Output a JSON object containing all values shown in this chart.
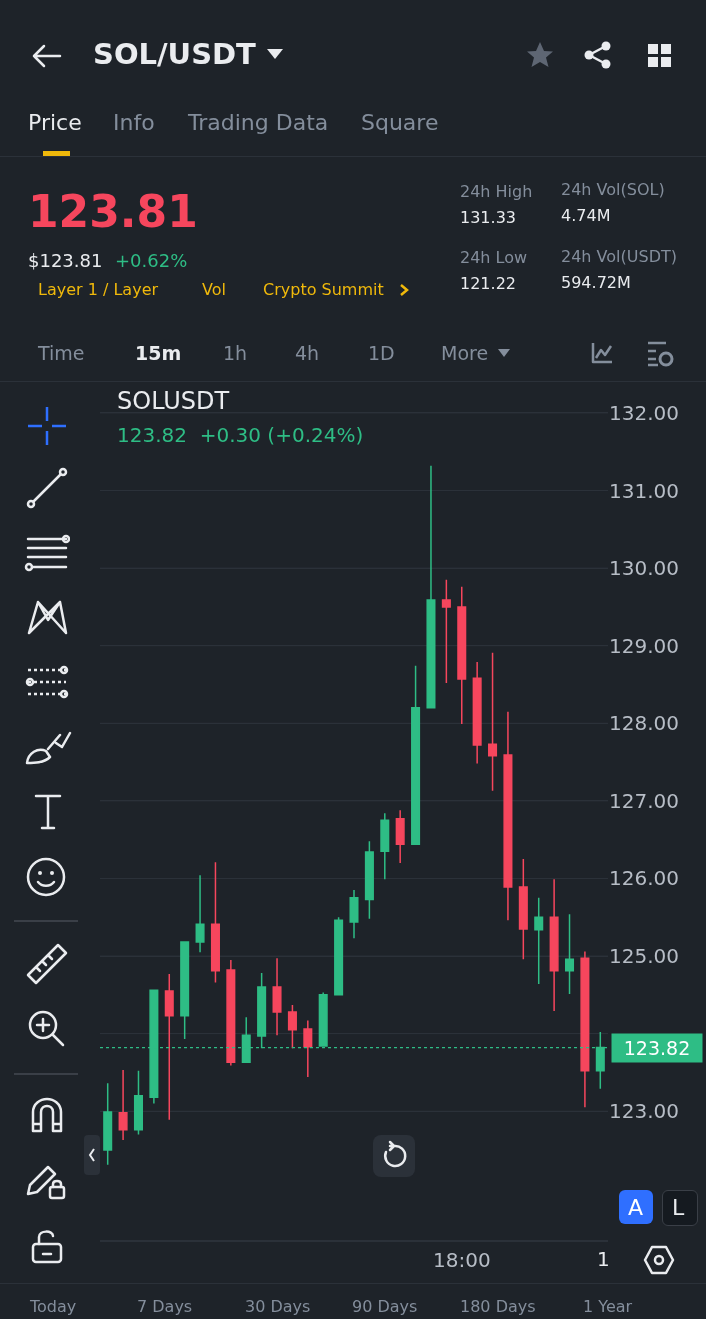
{
  "chart_data": {
    "type": "candlestick",
    "title": "SOLUSDT",
    "subtitle": "123.82  +0.30 (+0.24%)",
    "categories": [
      null,
      null,
      null,
      null,
      null,
      null,
      null,
      null,
      null,
      null,
      null,
      null,
      null,
      null,
      null,
      null,
      null,
      null,
      null,
      null,
      null,
      null,
      null,
      null,
      null,
      null,
      null,
      null,
      null,
      null,
      null,
      null,
      null
    ],
    "ohlc": [
      [
        122.5,
        123.36,
        122.31,
        122.99
      ],
      [
        122.98,
        123.53,
        122.63,
        122.76
      ],
      [
        122.76,
        123.52,
        122.7,
        123.2
      ],
      [
        123.18,
        124.56,
        123.1,
        124.56
      ],
      [
        124.55,
        124.77,
        122.89,
        124.23
      ],
      [
        124.23,
        125.18,
        123.93,
        125.18
      ],
      [
        125.18,
        126.04,
        125.05,
        125.41
      ],
      [
        125.41,
        126.21,
        124.66,
        124.81
      ],
      [
        124.82,
        124.95,
        123.59,
        123.63
      ],
      [
        123.63,
        124.21,
        123.63,
        123.98
      ],
      [
        123.97,
        124.78,
        123.81,
        124.6
      ],
      [
        124.6,
        124.97,
        123.98,
        124.28
      ],
      [
        124.28,
        124.37,
        123.81,
        124.05
      ],
      [
        124.06,
        124.17,
        123.44,
        123.83
      ],
      [
        123.84,
        124.53,
        123.84,
        124.5
      ],
      [
        124.5,
        125.5,
        124.5,
        125.46
      ],
      [
        125.44,
        125.85,
        125.23,
        125.75
      ],
      [
        125.73,
        126.48,
        125.48,
        126.34
      ],
      [
        126.35,
        126.84,
        125.99,
        126.75
      ],
      [
        126.77,
        126.88,
        126.2,
        126.44
      ],
      [
        126.44,
        128.74,
        126.44,
        128.2
      ],
      [
        128.2,
        131.32,
        128.2,
        129.59
      ],
      [
        129.59,
        129.85,
        128.52,
        129.5
      ],
      [
        129.5,
        129.76,
        127.99,
        128.57
      ],
      [
        128.58,
        128.79,
        127.48,
        127.72
      ],
      [
        127.73,
        128.91,
        127.13,
        127.58
      ],
      [
        127.59,
        128.15,
        125.46,
        125.89
      ],
      [
        125.89,
        126.25,
        124.96,
        125.35
      ],
      [
        125.34,
        125.75,
        124.64,
        125.5
      ],
      [
        125.5,
        125.99,
        124.29,
        124.81
      ],
      [
        124.81,
        125.54,
        124.51,
        124.96
      ],
      [
        124.97,
        125.06,
        123.05,
        123.52
      ],
      [
        123.52,
        124.02,
        123.29,
        123.82
      ]
    ],
    "ylim": [
      121.34,
      132.36
    ],
    "yticks": [
      {
        "value": 123,
        "label": "123.00"
      },
      {
        "value": 124,
        "label": null
      },
      {
        "value": 125,
        "label": "125.00"
      },
      {
        "value": 126,
        "label": "126.00"
      },
      {
        "value": 127,
        "label": "127.00"
      },
      {
        "value": 128,
        "label": "128.00"
      },
      {
        "value": 129,
        "label": "129.00"
      },
      {
        "value": 130,
        "label": "130.00"
      },
      {
        "value": 131,
        "label": "131.00"
      },
      {
        "value": 132,
        "label": "132.00"
      }
    ],
    "grid": "y",
    "ref_lines": [
      {
        "axis": "y",
        "value": 123.82,
        "label": "123.82",
        "color": "#2ebd85",
        "line_style": "dotted"
      }
    ],
    "annotations": [
      "18:00",
      "SOL/USDT",
      "Price",
      "Info",
      "Trading Data",
      "Square",
      "123.81",
      "$123.81",
      "+0.62%",
      "Layer 1 / Layer",
      "Vol",
      "Crypto Summit",
      "24h High",
      "131.33",
      "24h Low",
      "121.22",
      "24h Vol(SOL)",
      "4.74M",
      "24h Vol(USDT)",
      "594.72M",
      "Time",
      "15m",
      "1h",
      "4h",
      "1D",
      "More",
      "1",
      "A",
      "L",
      "Today",
      "7 Days",
      "30 Days",
      "90 Days",
      "180 Days",
      "1 Year"
    ]
  }
}
